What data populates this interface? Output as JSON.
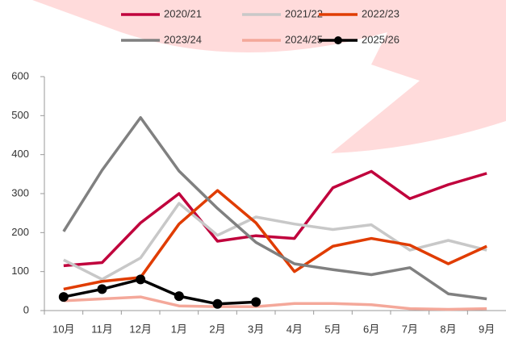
{
  "chart_data": {
    "type": "line",
    "categories": [
      "10月",
      "11月",
      "12月",
      "1月",
      "2月",
      "3月",
      "4月",
      "5月",
      "6月",
      "7月",
      "8月",
      "9月"
    ],
    "series": [
      {
        "name": "2020/21",
        "color": "#c0003c",
        "values": [
          115,
          123,
          225,
          300,
          178,
          192,
          185,
          315,
          357,
          287,
          323,
          352
        ]
      },
      {
        "name": "2021/22",
        "color": "#c8c8c8",
        "values": [
          130,
          80,
          135,
          275,
          193,
          240,
          222,
          208,
          220,
          155,
          180,
          155
        ]
      },
      {
        "name": "2022/23",
        "color": "#e03c00",
        "values": [
          55,
          75,
          85,
          222,
          308,
          225,
          100,
          165,
          185,
          168,
          120,
          165
        ]
      },
      {
        "name": "2023/24",
        "color": "#808080",
        "values": [
          203,
          360,
          495,
          358,
          262,
          175,
          120,
          105,
          92,
          110,
          43,
          30
        ]
      },
      {
        "name": "2024/25",
        "color": "#f4a89a",
        "values": [
          25,
          30,
          35,
          12,
          10,
          10,
          18,
          18,
          15,
          5,
          3,
          5
        ]
      },
      {
        "name": "2025/26",
        "color": "#000000",
        "marker": "circle",
        "values": [
          35,
          55,
          80,
          37,
          17,
          22,
          null,
          null,
          null,
          null,
          null,
          null
        ]
      }
    ],
    "ylim": [
      0,
      600
    ],
    "yticks": [
      0,
      100,
      200,
      300,
      400,
      500,
      600
    ],
    "grid": false,
    "legend": "top"
  }
}
